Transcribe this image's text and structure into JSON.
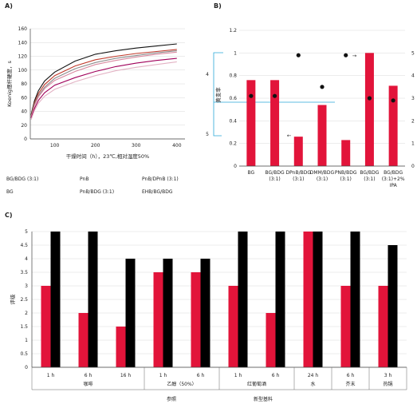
{
  "panels": {
    "a": "A)",
    "b": "B)",
    "c": "C)"
  },
  "chart_data": [
    {
      "type": "line",
      "xlabel": "干燥时间（h），23℃,相对湿度50%",
      "ylabel": "Koenig摆杆硬度，s",
      "xlim": [
        40,
        420
      ],
      "ylim": [
        0,
        160
      ],
      "xticks": [
        100,
        200,
        300,
        400
      ],
      "yticks": [
        0,
        20,
        40,
        60,
        80,
        100,
        120,
        140,
        160
      ],
      "legend_labels": [
        "BG/BDG (3:1)",
        "PnB",
        "PnB/DPnB (3:1)",
        "BG",
        "PnB/BDG (3:1)",
        "EHB/BG/BDG"
      ],
      "series": [
        {
          "color": "#111111",
          "points": [
            [
              42,
              35
            ],
            [
              50,
              55
            ],
            [
              60,
              70
            ],
            [
              75,
              84
            ],
            [
              100,
              97
            ],
            [
              150,
              113
            ],
            [
              200,
              123
            ],
            [
              250,
              128
            ],
            [
              300,
              132
            ],
            [
              350,
              135
            ],
            [
              400,
              138
            ]
          ]
        },
        {
          "color": "#c0392b",
          "points": [
            [
              42,
              33
            ],
            [
              50,
              52
            ],
            [
              60,
              66
            ],
            [
              75,
              79
            ],
            [
              100,
              92
            ],
            [
              150,
              106
            ],
            [
              200,
              115
            ],
            [
              250,
              120
            ],
            [
              300,
              124
            ],
            [
              350,
              127
            ],
            [
              400,
              130
            ]
          ]
        },
        {
          "color": "#8c8c8c",
          "points": [
            [
              42,
              32
            ],
            [
              50,
              50
            ],
            [
              60,
              63
            ],
            [
              75,
              75
            ],
            [
              100,
              88
            ],
            [
              150,
              102
            ],
            [
              200,
              111
            ],
            [
              250,
              117
            ],
            [
              300,
              121
            ],
            [
              350,
              125
            ],
            [
              400,
              128
            ]
          ]
        },
        {
          "color": "#d98aa0",
          "points": [
            [
              42,
              31
            ],
            [
              50,
              48
            ],
            [
              60,
              61
            ],
            [
              75,
              73
            ],
            [
              100,
              85
            ],
            [
              150,
              98
            ],
            [
              200,
              108
            ],
            [
              250,
              114
            ],
            [
              300,
              119
            ],
            [
              350,
              123
            ],
            [
              400,
              126
            ]
          ]
        },
        {
          "color": "#a0005a",
          "points": [
            [
              42,
              30
            ],
            [
              50,
              44
            ],
            [
              60,
              56
            ],
            [
              75,
              67
            ],
            [
              100,
              78
            ],
            [
              150,
              89
            ],
            [
              200,
              98
            ],
            [
              250,
              105
            ],
            [
              300,
              110
            ],
            [
              350,
              114
            ],
            [
              400,
              117
            ]
          ]
        },
        {
          "color": "#e3b3c4",
          "points": [
            [
              42,
              28
            ],
            [
              50,
              41
            ],
            [
              60,
              52
            ],
            [
              75,
              62
            ],
            [
              100,
              72
            ],
            [
              150,
              83
            ],
            [
              200,
              92
            ],
            [
              250,
              99
            ],
            [
              300,
              104
            ],
            [
              350,
              108
            ],
            [
              400,
              112
            ]
          ]
        }
      ]
    },
    {
      "type": "bar",
      "ylabel_right_axis": "黄变率",
      "ylim": [
        0,
        1.2
      ],
      "yticks": [
        0,
        0.2,
        0.4,
        0.6,
        0.8,
        1,
        1.2
      ],
      "right_ticks": [
        0,
        1,
        2,
        3,
        4,
        5
      ],
      "left_extra_labels": [
        "4",
        "5"
      ],
      "categories": [
        [
          "BG"
        ],
        [
          "BG/BDG",
          "(3:1)"
        ],
        [
          "DPnB/BDG",
          "(3:1)"
        ],
        [
          "DMM/BDG",
          "(3:1)"
        ],
        [
          "PNB/BDG",
          "(3:1)"
        ],
        [
          "BG/BDG",
          "(3:1)"
        ],
        [
          "BG/BDG",
          "(3:1)+2%",
          "IPA"
        ]
      ],
      "values": [
        0.76,
        0.76,
        0.26,
        0.54,
        0.23,
        1.0,
        0.71
      ],
      "dots_right_axis": [
        3.1,
        3.1,
        4.9,
        3.5,
        4.9,
        3.0,
        2.9
      ],
      "arrows": [
        "←",
        "→"
      ],
      "bar_color": "#e2143a"
    },
    {
      "type": "bar",
      "ylabel": "评级",
      "ylim": [
        0,
        5
      ],
      "yticks": [
        0,
        0.5,
        1,
        1.5,
        2,
        2.5,
        3,
        3.5,
        4,
        4.5,
        5
      ],
      "categories": [
        "1 h",
        "6 h",
        "16 h",
        "1 h",
        "6 h",
        "1 h",
        "6 h",
        "24 h",
        "6 h",
        "3 h"
      ],
      "groups": [
        {
          "label": "咖啡",
          "span": [
            0,
            2
          ]
        },
        {
          "label": "乙醇（50%）",
          "span": [
            3,
            4
          ]
        },
        {
          "label": "红葡萄酒",
          "span": [
            5,
            6
          ]
        },
        {
          "label": "水",
          "span": [
            7,
            7
          ]
        },
        {
          "label": "芥末",
          "span": [
            8,
            8
          ]
        },
        {
          "label": "热锅",
          "span": [
            9,
            9
          ]
        }
      ],
      "series": [
        {
          "name": "参照",
          "color": "#e2143a",
          "values": [
            3,
            2,
            1.5,
            3.5,
            3.5,
            3,
            2,
            5,
            3,
            3
          ]
        },
        {
          "name": "新型基料",
          "color": "#000000",
          "values": [
            5,
            5,
            4,
            4,
            4,
            5,
            5,
            5,
            5,
            4.5
          ]
        }
      ]
    }
  ]
}
